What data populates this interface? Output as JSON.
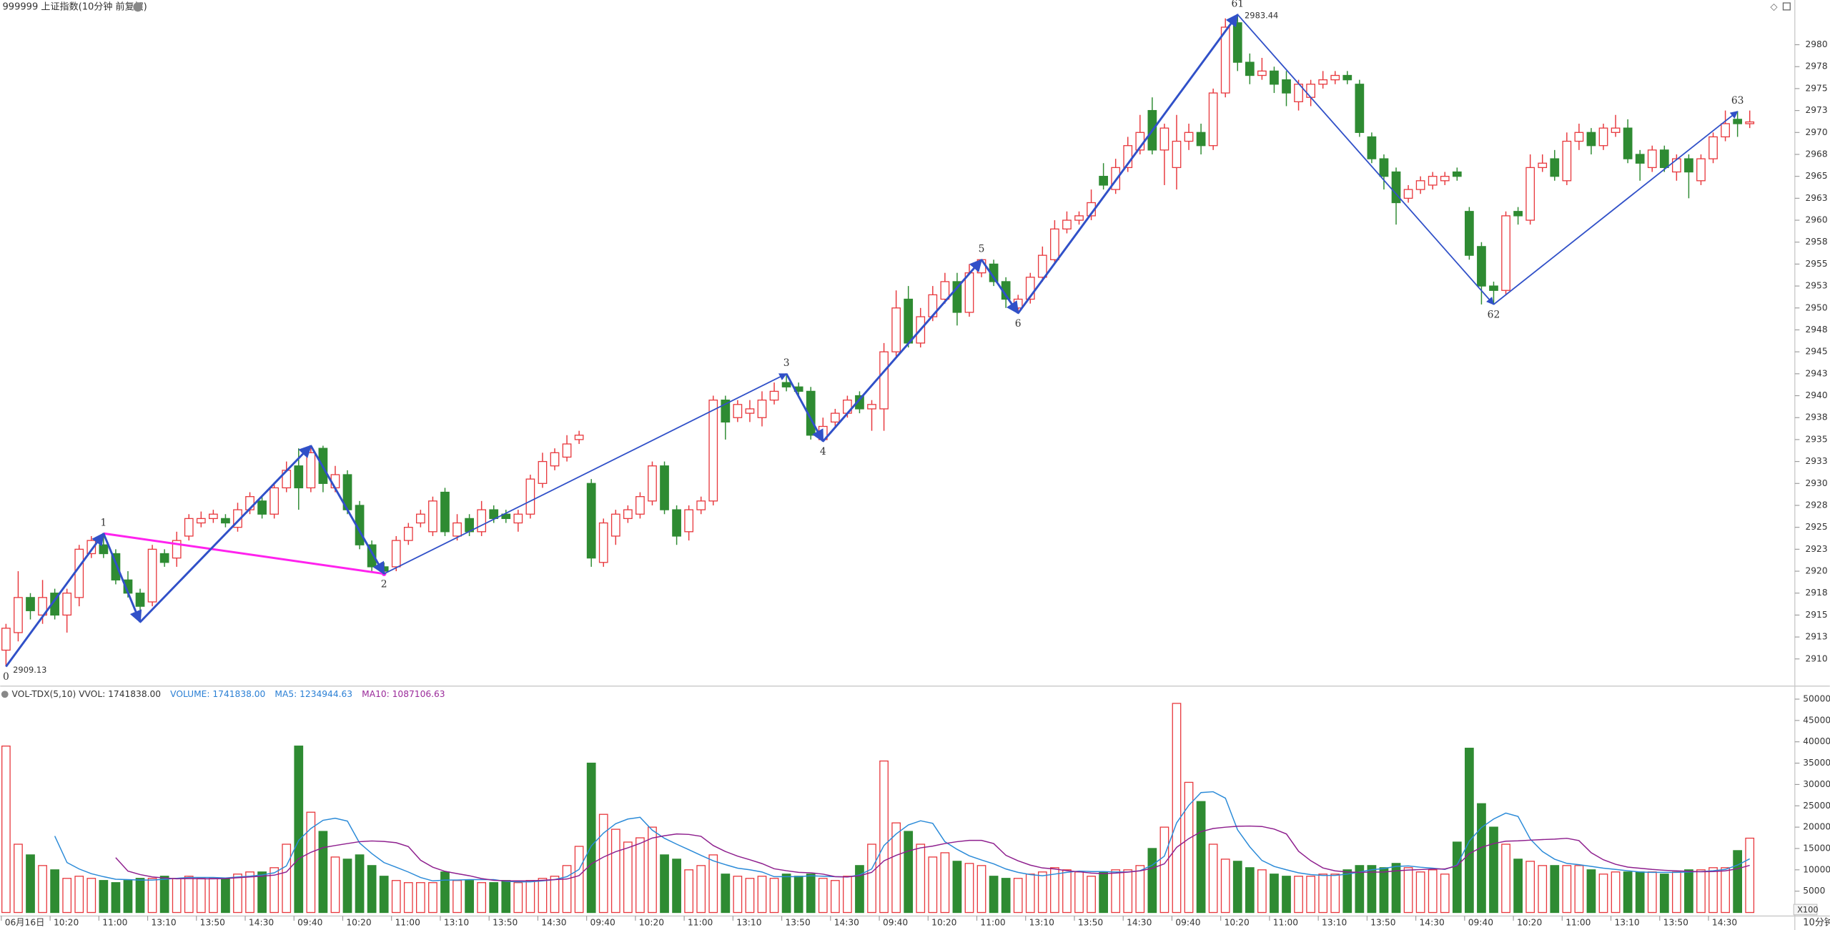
{
  "chart_data": {
    "type": "candlestick",
    "title": "999999 上证指数(10分钟 前复权)",
    "period_label": "10分钟",
    "up_color": "#e8383d",
    "down_color": "#2e8b32",
    "zigzag_color": "#3050c8",
    "categories": [
      "06月16日",
      null,
      null,
      null,
      "10:20",
      null,
      null,
      null,
      "11:00",
      null,
      null,
      null,
      "13:10",
      null,
      null,
      null,
      "13:50",
      null,
      null,
      null,
      "14:30",
      null,
      null,
      null,
      "09:40",
      null,
      null,
      null,
      "10:20",
      null,
      null,
      null,
      "11:00",
      null,
      null,
      null,
      "13:10",
      null,
      null,
      null,
      "13:50",
      null,
      null,
      null,
      "14:30",
      null,
      null,
      null,
      "09:40",
      null,
      null,
      null,
      "10:20",
      null,
      null,
      null,
      "11:00",
      null,
      null,
      null,
      "13:10",
      null,
      null,
      null,
      "13:50",
      null,
      null,
      null,
      "14:30",
      null,
      null,
      null,
      "09:40",
      null,
      null,
      null,
      "10:20",
      null,
      null,
      null,
      "11:00",
      null,
      null,
      null,
      "13:10",
      null,
      null,
      null,
      "13:50",
      null,
      null,
      null,
      "14:30",
      null,
      null,
      null,
      "09:40",
      null,
      null,
      null,
      "10:20",
      null,
      null,
      null,
      "11:00",
      null,
      null,
      null,
      "13:10",
      null,
      null,
      null,
      "13:50",
      null,
      null,
      null,
      "14:30",
      null,
      null,
      null,
      "09:40",
      null,
      null,
      null,
      "10:20",
      null,
      null,
      null,
      "11:00",
      null,
      null,
      null,
      "13:10",
      null,
      null,
      null,
      "13:50",
      null,
      null,
      null,
      "14:30",
      null,
      null,
      null
    ],
    "open": [
      2911,
      2913,
      2917,
      2915,
      2917.5,
      2915,
      2917,
      2922,
      2923,
      2922,
      2919,
      2917.5,
      2916.5,
      2922,
      2921.5,
      2924,
      2925.5,
      2926,
      2926,
      2925,
      2927,
      2928,
      2926.5,
      2929.5,
      2932,
      2929.5,
      2934,
      2929.5,
      2931,
      2927.5,
      2923,
      2920.5,
      2920.5,
      2923.5,
      2925.5,
      2924.5,
      2929,
      2924,
      2926,
      2924.5,
      2927,
      2926.5,
      2925.5,
      2926.5,
      2930,
      2932,
      2933,
      2935,
      2930,
      2921,
      2924,
      2926,
      2926.5,
      2928,
      2932,
      2927,
      2924.5,
      2927,
      2928,
      2939.5,
      2937.5,
      2938,
      2937.5,
      2939.5,
      2941.5,
      2941,
      2940.5,
      2935,
      2937,
      2938,
      2940,
      2938.5,
      2938.5,
      2945,
      2951,
      2946,
      2949,
      2951,
      2953,
      2949.5,
      2954,
      2955,
      2953,
      2950,
      2951,
      2953.5,
      2955.5,
      2959,
      2960,
      2960.5,
      2965,
      2963.5,
      2966,
      2968,
      2972.5,
      2968,
      2966,
      2969,
      2970,
      2968.5,
      2974.5,
      2982.5,
      2978,
      2976.5,
      2977,
      2976,
      2973.5,
      2974,
      2975.5,
      2976,
      2976.5,
      2975.5,
      2969.5,
      2967,
      2965.5,
      2962.5,
      2963.5,
      2964,
      2964.5,
      2965.5,
      2961,
      2957,
      2952.5,
      2952,
      2961,
      2960,
      2966,
      2967,
      2964.5,
      2969,
      2970,
      2968.5,
      2970,
      2970.5,
      2967.5,
      2966,
      2968,
      2965.5,
      2967,
      2964.5,
      2967,
      2969.5,
      2971.5,
      2971
    ],
    "high": [
      2914,
      2920,
      2917.5,
      2919,
      2918,
      2918,
      2923,
      2924,
      2924.3,
      2922.5,
      2920,
      2918,
      2923,
      2922.5,
      2924.5,
      2926.5,
      2926.8,
      2927,
      2926.5,
      2927.8,
      2929,
      2928.5,
      2930,
      2932.5,
      2934,
      2934.3,
      2934.3,
      2932,
      2931.5,
      2928,
      2923.5,
      2921,
      2924,
      2925.5,
      2927,
      2928.5,
      2929.5,
      2926.5,
      2926.5,
      2928,
      2927.5,
      2927,
      2927,
      2931,
      2933.5,
      2934,
      2935.5,
      2936,
      2930.5,
      2926,
      2927,
      2927.5,
      2929,
      2932.5,
      2932.5,
      2927.5,
      2927.5,
      2928.5,
      2940,
      2940,
      2939.5,
      2939.5,
      2940.5,
      2941.5,
      2942.5,
      2941.5,
      2941,
      2937.5,
      2938.5,
      2940,
      2940.5,
      2939.5,
      2946,
      2952,
      2952.5,
      2950,
      2952.5,
      2954,
      2954,
      2955,
      2955.5,
      2955.5,
      2953.5,
      2951.5,
      2954,
      2957,
      2960,
      2961,
      2961,
      2963.5,
      2966.5,
      2967,
      2969.5,
      2972,
      2974,
      2971,
      2972,
      2971,
      2971,
      2975,
      2983,
      2983.44,
      2979,
      2978.5,
      2977.5,
      2977,
      2976,
      2976,
      2977,
      2977,
      2977,
      2976,
      2970,
      2967.5,
      2966,
      2964,
      2965,
      2965.5,
      2965.5,
      2966,
      2961.5,
      2957.5,
      2953,
      2961,
      2961.5,
      2967.5,
      2967.5,
      2968,
      2970,
      2971,
      2970.5,
      2971,
      2972,
      2971.5,
      2968,
      2968.5,
      2968.5,
      2967.5,
      2967.5,
      2967.5,
      2970,
      2972.5,
      2972.4,
      2972.5
    ],
    "low": [
      2909.13,
      2912,
      2914.5,
      2914,
      2914.5,
      2913,
      2916,
      2921.5,
      2921.5,
      2918.5,
      2917,
      2914.2,
      2916,
      2920.5,
      2920.5,
      2923.5,
      2925,
      2925.5,
      2925,
      2924.5,
      2926.5,
      2926,
      2926,
      2929,
      2927,
      2929,
      2929,
      2929,
      2926.5,
      2922.5,
      2920,
      2919.7,
      2920,
      2923,
      2925,
      2924,
      2924,
      2923.5,
      2924,
      2924,
      2925.5,
      2925.5,
      2924.5,
      2926,
      2929.5,
      2931.5,
      2932.5,
      2934.5,
      2920.5,
      2920.5,
      2923,
      2925.5,
      2926,
      2927.5,
      2926.5,
      2923,
      2923.5,
      2926.5,
      2927.5,
      2935,
      2937,
      2937,
      2936.5,
      2939,
      2940.5,
      2940,
      2935,
      2934.8,
      2936.5,
      2937.5,
      2938,
      2936,
      2936,
      2944.5,
      2945.5,
      2945.5,
      2948.5,
      2950.5,
      2948,
      2949,
      2953.5,
      2952.5,
      2950,
      2949.4,
      2950.5,
      2953,
      2955,
      2958.5,
      2959.5,
      2960,
      2963.5,
      2963,
      2965.5,
      2967.5,
      2967.5,
      2964,
      2963.5,
      2968,
      2967.5,
      2968,
      2974,
      2977,
      2975.5,
      2976,
      2974.5,
      2973,
      2972.5,
      2973,
      2975,
      2975.5,
      2975.5,
      2969.5,
      2966.5,
      2963.5,
      2959.5,
      2962,
      2963,
      2963.5,
      2964,
      2964.5,
      2955.5,
      2950.4,
      2950.4,
      2951.5,
      2959.5,
      2959.5,
      2965.5,
      2964.5,
      2964,
      2968,
      2967.5,
      2968,
      2969.5,
      2966.5,
      2964.5,
      2965.5,
      2965.5,
      2964.5,
      2962.5,
      2964,
      2966.5,
      2969,
      2969.5,
      2970.5
    ],
    "close": [
      2913.5,
      2917,
      2915.5,
      2917,
      2915,
      2917.5,
      2922.5,
      2923.5,
      2922,
      2919,
      2917.5,
      2916,
      2922.5,
      2921,
      2923.5,
      2926,
      2926,
      2926.5,
      2925.5,
      2927,
      2928.5,
      2926.5,
      2929.5,
      2931.5,
      2929.5,
      2933.5,
      2930,
      2931,
      2927,
      2923,
      2920.5,
      2920,
      2923.5,
      2925,
      2926.5,
      2928,
      2924.5,
      2925.5,
      2924.5,
      2927,
      2926,
      2926,
      2926.5,
      2930.5,
      2932.5,
      2933.5,
      2934.5,
      2935.5,
      2921.5,
      2925.5,
      2926.5,
      2927,
      2928.5,
      2932,
      2927,
      2924,
      2927,
      2928,
      2939.5,
      2937,
      2939,
      2938.5,
      2939.5,
      2940.5,
      2941,
      2940.5,
      2935.5,
      2936.5,
      2938,
      2939.5,
      2938.5,
      2939,
      2945,
      2950,
      2946,
      2949,
      2951.5,
      2953,
      2949.5,
      2954,
      2955.5,
      2953,
      2951,
      2951,
      2953.5,
      2956,
      2959,
      2960,
      2960.5,
      2962,
      2964,
      2966,
      2968.5,
      2970,
      2968,
      2970.5,
      2969,
      2970,
      2968.5,
      2974.5,
      2982,
      2978,
      2976.5,
      2977,
      2975.5,
      2974.5,
      2975.5,
      2975.5,
      2976,
      2976.5,
      2976,
      2970,
      2967,
      2965,
      2962,
      2963.5,
      2964.5,
      2965,
      2965,
      2965,
      2956,
      2952.5,
      2952,
      2960.5,
      2960.5,
      2966,
      2966.5,
      2965,
      2969,
      2970,
      2968.5,
      2970.5,
      2970.5,
      2967,
      2966.5,
      2968,
      2966,
      2967,
      2965.5,
      2967,
      2969.5,
      2971,
      2971,
      2971.2
    ],
    "ylim": [
      2907.3,
      2983.5
    ],
    "yticks": [
      2910,
      {
        "value": 2912.5,
        "label": "2913"
      },
      2915,
      {
        "value": 2917.5,
        "label": "2918"
      },
      2920,
      {
        "value": 2922.5,
        "label": "2923"
      },
      2925,
      {
        "value": 2927.5,
        "label": "2928"
      },
      2930,
      {
        "value": 2932.5,
        "label": "2933"
      },
      2935,
      {
        "value": 2937.5,
        "label": "2938"
      },
      2940,
      {
        "value": 2942.5,
        "label": "2943"
      },
      2945,
      {
        "value": 2947.5,
        "label": "2948"
      },
      2950,
      {
        "value": 2952.5,
        "label": "2953"
      },
      2955,
      {
        "value": 2957.5,
        "label": "2958"
      },
      2960,
      {
        "value": 2962.5,
        "label": "2963"
      },
      2965,
      {
        "value": 2967.5,
        "label": "2968"
      },
      2970,
      {
        "value": 2972.5,
        "label": "2973"
      },
      2975,
      {
        "value": 2977.5,
        "label": "2978"
      },
      2980
    ],
    "pivots": [
      {
        "label": "0",
        "index": 0,
        "value": 2909.13,
        "price_label": "2909.13"
      },
      {
        "label": "1",
        "index": 8,
        "value": 2924.3
      },
      {
        "label": null,
        "index": 11,
        "value": 2914.2
      },
      {
        "label": null,
        "index": 25,
        "value": 2934.3
      },
      {
        "label": "2",
        "index": 31,
        "value": 2919.7
      },
      {
        "label": "3",
        "index": 64,
        "value": 2942.5
      },
      {
        "label": "4",
        "index": 67,
        "value": 2934.8
      },
      {
        "label": "5",
        "index": 80,
        "value": 2955.5
      },
      {
        "label": "6",
        "index": 83,
        "value": 2949.4
      },
      {
        "label": "61",
        "index": 101,
        "value": 2983.44,
        "price_label": "2983.44"
      },
      {
        "label": "62",
        "index": 122,
        "value": 2950.4
      },
      {
        "label": "63",
        "index": 142,
        "value": 2972.4
      }
    ],
    "link": {
      "from": 1,
      "to": 4,
      "color": "#ff22ee"
    },
    "volume": {
      "header": [
        "VOL-TDX(5,10) VVOL: 1741838.00",
        "VOLUME: 1741838.00",
        "MA5: 1234944.63",
        "MA10: 1087106.63"
      ],
      "header_colors": [
        "#333333",
        "#2a7fd4",
        "#2a7fd4",
        "#9a2a9a"
      ],
      "unit_label": "X100",
      "ma_periods": [
        5,
        10
      ],
      "ma_colors": [
        "#2a8ad8",
        "#8e1f8e"
      ],
      "values": [
        39000,
        16000,
        13500,
        11000,
        10000,
        8000,
        8500,
        8000,
        7500,
        7000,
        7500,
        8000,
        8000,
        8500,
        8000,
        8500,
        8000,
        8000,
        8000,
        9000,
        9500,
        9500,
        10500,
        16000,
        39000,
        23500,
        19000,
        13000,
        12500,
        13500,
        11000,
        8500,
        7500,
        7000,
        7000,
        7000,
        9500,
        7500,
        7500,
        7000,
        7000,
        7500,
        7000,
        7500,
        8000,
        8500,
        11000,
        15500,
        35000,
        23000,
        19500,
        16500,
        17500,
        20000,
        13500,
        12500,
        10000,
        11000,
        13500,
        9000,
        8500,
        8000,
        8500,
        8000,
        9000,
        8500,
        9000,
        8000,
        7500,
        8500,
        11000,
        16000,
        35500,
        21000,
        19000,
        16000,
        13000,
        14000,
        12000,
        11500,
        11000,
        8500,
        8000,
        8000,
        9000,
        9500,
        10500,
        10000,
        9500,
        8500,
        9500,
        10000,
        10000,
        11000,
        15000,
        20000,
        49000,
        30500,
        26000,
        16000,
        12500,
        12000,
        10500,
        10000,
        9000,
        8500,
        8500,
        8500,
        9000,
        9000,
        10000,
        11000,
        11000,
        10500,
        11500,
        10500,
        9500,
        10000,
        9000,
        16500,
        38500,
        25500,
        20000,
        16000,
        12500,
        12000,
        11000,
        11000,
        11000,
        11000,
        10000,
        9000,
        9500,
        9500,
        9500,
        9500,
        9000,
        9500,
        10000,
        10000,
        10500,
        10500,
        14500,
        17418.38
      ],
      "ylim": [
        0,
        52500
      ],
      "yticks": [
        5000,
        10000,
        15000,
        20000,
        25000,
        30000,
        35000,
        40000,
        45000,
        50000
      ]
    }
  }
}
